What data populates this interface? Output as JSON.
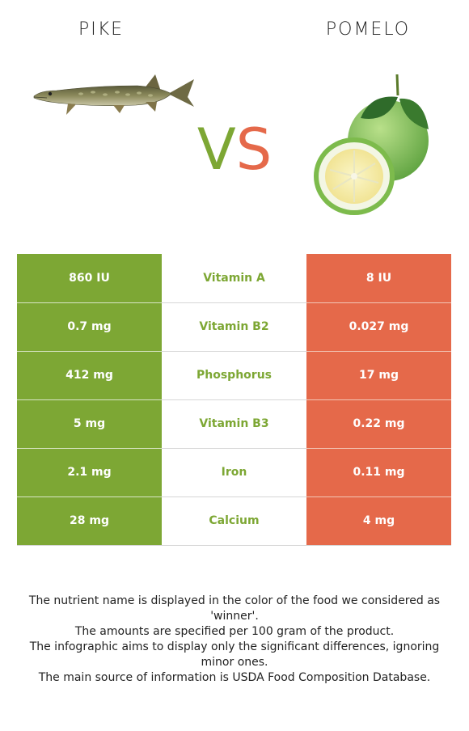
{
  "left_food": {
    "name": "PIKE"
  },
  "right_food": {
    "name": "POMELO"
  },
  "vs": {
    "v": "V",
    "s": "S"
  },
  "colors": {
    "left": "#7da734",
    "right": "#e5694a"
  },
  "nutrients": [
    {
      "left": "860 IU",
      "name": "Vitamin A",
      "right": "8 IU"
    },
    {
      "left": "0.7 mg",
      "name": "Vitamin B2",
      "right": "0.027 mg"
    },
    {
      "left": "412 mg",
      "name": "Phosphorus",
      "right": "17 mg"
    },
    {
      "left": "5 mg",
      "name": "Vitamin B3",
      "right": "0.22 mg"
    },
    {
      "left": "2.1 mg",
      "name": "Iron",
      "right": "0.11 mg"
    },
    {
      "left": "28 mg",
      "name": "Calcium",
      "right": "4 mg"
    }
  ],
  "footnotes": [
    "The nutrient name is displayed in the color of the food we considered as 'winner'.",
    "The amounts are specified per 100 gram of the product.",
    "The infographic aims to display only the significant differences, ignoring minor ones.",
    "The main source of information is USDA Food Composition Database."
  ]
}
